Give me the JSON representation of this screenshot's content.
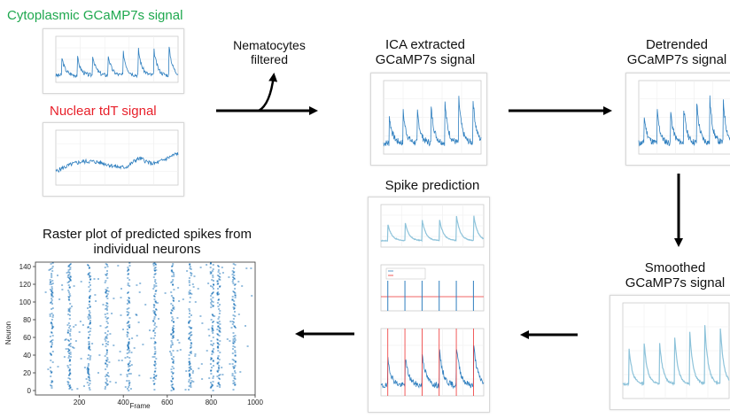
{
  "labels": {
    "cyto": "Cytoplasmic GCaMP7s signal",
    "nuclear": "Nuclear tdT signal",
    "nematocytes": "Nematocytes filtered",
    "ica": "ICA extracted GCaMP7s signal",
    "detrended": "Detrended GCaMP7s signal",
    "smoothed": "Smoothed GCaMP7s signal",
    "spike": "Spike prediction",
    "raster": "Raster plot of predicted spikes from individual neurons"
  },
  "colors": {
    "cyto": "#1fa84f",
    "nuclear": "#e8202a",
    "trace": "#2f7fbf",
    "trace_light": "#8ec3da",
    "spike_red": "#e33"
  },
  "raster_axes": {
    "xlabel": "Frame",
    "ylabel": "Neuron",
    "x_ticks": [
      "200",
      "400",
      "600",
      "800",
      "1000"
    ],
    "y_ticks": [
      "0",
      "20",
      "40",
      "60",
      "80",
      "100",
      "120",
      "140"
    ]
  },
  "chart_data": {
    "type": "scatter",
    "title": "Raster plot of predicted spikes from individual neurons",
    "xlabel": "Frame",
    "ylabel": "Neuron",
    "xlim": [
      0,
      1000
    ],
    "ylim": [
      -5,
      145
    ],
    "x_ticks": [
      200,
      400,
      600,
      800,
      1000
    ],
    "y_ticks": [
      0,
      20,
      40,
      60,
      80,
      100,
      120,
      140
    ],
    "series": [
      {
        "name": "",
        "x_bands": [
          70,
          150,
          240,
          320,
          420,
          540,
          620,
          700,
          800,
          830,
          900
        ],
        "neurons": 145
      }
    ]
  }
}
